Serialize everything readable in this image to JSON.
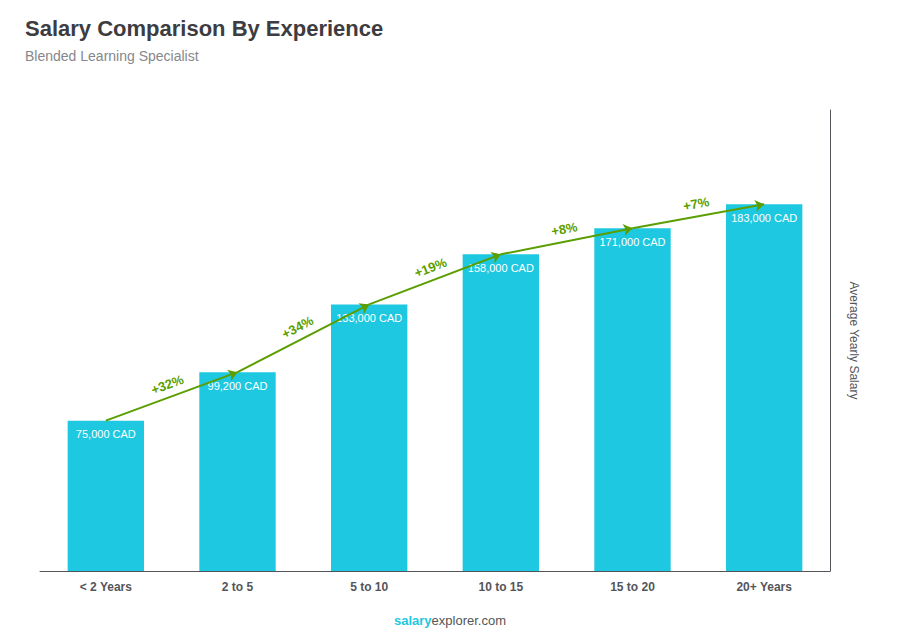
{
  "chart_data": {
    "type": "bar",
    "title": "Salary Comparison By Experience",
    "subtitle": "Blended Learning Specialist",
    "categories": [
      "< 2 Years",
      "2 to 5",
      "5 to 10",
      "10 to 15",
      "15 to 20",
      "20+ Years"
    ],
    "values": [
      75000,
      99200,
      133000,
      158000,
      171000,
      183000
    ],
    "value_labels": [
      "75,000 CAD",
      "99,200 CAD",
      "133,000 CAD",
      "158,000 CAD",
      "171,000 CAD",
      "183,000 CAD"
    ],
    "data_labels": true,
    "color": "#1ec8e0",
    "ylabel": "Average Yearly Salary",
    "ylim": [
      0,
      230000
    ],
    "tick_labels": "x",
    "grid": false,
    "annotations": [
      "+32%",
      "+34%",
      "+19%",
      "+8%",
      "+7%"
    ],
    "footer": [
      "salary",
      "explorer.com"
    ]
  }
}
